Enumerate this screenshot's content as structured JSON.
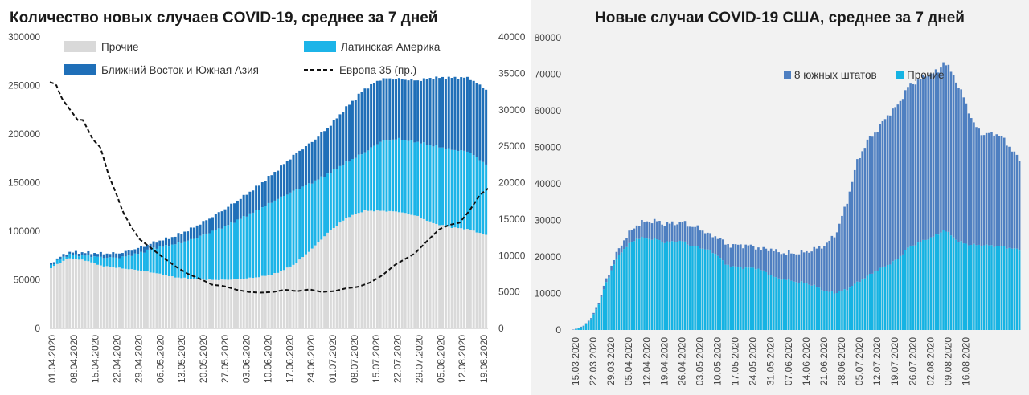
{
  "chart_data": [
    {
      "type": "bar",
      "stacked": true,
      "title": "Количество новых случаев COVID-19, среднее за 7 дней",
      "x_tick_labels": [
        "01.04.2020",
        "08.04.2020",
        "15.04.2020",
        "22.04.2020",
        "29.04.2020",
        "06.05.2020",
        "13.05.2020",
        "20.05.2020",
        "27.05.2020",
        "03.06.2020",
        "10.06.2020",
        "17.06.2020",
        "24.06.2020",
        "01.07.2020",
        "08.07.2020",
        "15.07.2020",
        "22.07.2020",
        "29.07.2020",
        "05.08.2020",
        "12.08.2020",
        "19.08.2020"
      ],
      "y_left_ticks": [
        "0",
        "50000",
        "100000",
        "150000",
        "200000",
        "250000",
        "300000"
      ],
      "y_left_range": [
        0,
        300000
      ],
      "y_right_ticks": [
        "0",
        "5000",
        "10000",
        "15000",
        "20000",
        "25000",
        "30000",
        "35000",
        "40000"
      ],
      "y_right_range": [
        0,
        40000
      ],
      "legend": [
        {
          "label": "Прочие",
          "color": "#d9d9d9",
          "kind": "bar"
        },
        {
          "label": "Латинская Америка",
          "color": "#1cb4e8",
          "kind": "bar"
        },
        {
          "label": "Ближний Восток и Южная Азия",
          "color": "#1f6fb8",
          "kind": "bar"
        },
        {
          "label": "Европа 35 (пр.)",
          "color": "#111111",
          "kind": "dashed-line"
        }
      ],
      "series": [
        {
          "name": "Прочие",
          "axis": "left",
          "anchors": [
            [
              0,
              62000
            ],
            [
              3,
              67000
            ],
            [
              7,
              72000
            ],
            [
              14,
              70000
            ],
            [
              21,
              64000
            ],
            [
              28,
              62000
            ],
            [
              35,
              60000
            ],
            [
              42,
              57000
            ],
            [
              49,
              53000
            ],
            [
              56,
              51000
            ],
            [
              63,
              50000
            ],
            [
              70,
              50000
            ],
            [
              77,
              51000
            ],
            [
              84,
              53000
            ],
            [
              91,
              57000
            ],
            [
              98,
              66000
            ],
            [
              105,
              82000
            ],
            [
              112,
              100000
            ],
            [
              119,
              114000
            ],
            [
              126,
              121000
            ],
            [
              133,
              121000
            ],
            [
              140,
              120000
            ],
            [
              147,
              116000
            ],
            [
              154,
              108000
            ],
            [
              161,
              104000
            ],
            [
              168,
              102000
            ],
            [
              175,
              96000
            ]
          ]
        },
        {
          "name": "Латинская Америка",
          "axis": "left",
          "anchors": [
            [
              0,
              3000
            ],
            [
              7,
              4000
            ],
            [
              14,
              5000
            ],
            [
              21,
              9000
            ],
            [
              28,
              11000
            ],
            [
              35,
              17000
            ],
            [
              42,
              26000
            ],
            [
              49,
              33000
            ],
            [
              56,
              40000
            ],
            [
              63,
              48000
            ],
            [
              70,
              55000
            ],
            [
              77,
              63000
            ],
            [
              84,
              70000
            ],
            [
              91,
              76000
            ],
            [
              98,
              76000
            ],
            [
              105,
              68000
            ],
            [
              112,
              60000
            ],
            [
              119,
              57000
            ],
            [
              126,
              60000
            ],
            [
              133,
              72000
            ],
            [
              140,
              75000
            ],
            [
              147,
              76000
            ],
            [
              154,
              80000
            ],
            [
              161,
              80000
            ],
            [
              168,
              80000
            ],
            [
              175,
              73000
            ]
          ]
        },
        {
          "name": "Ближний Восток и Южная Азия",
          "axis": "left",
          "anchors": [
            [
              0,
              2000
            ],
            [
              7,
              2500
            ],
            [
              14,
              3000
            ],
            [
              21,
              4000
            ],
            [
              28,
              4500
            ],
            [
              35,
              5500
            ],
            [
              42,
              6000
            ],
            [
              49,
              8000
            ],
            [
              56,
              11000
            ],
            [
              63,
              14000
            ],
            [
              70,
              18000
            ],
            [
              77,
              21000
            ],
            [
              84,
              25000
            ],
            [
              91,
              30000
            ],
            [
              98,
              37000
            ],
            [
              105,
              42000
            ],
            [
              112,
              48000
            ],
            [
              119,
              57000
            ],
            [
              126,
              65000
            ],
            [
              133,
              64000
            ],
            [
              140,
              62000
            ],
            [
              147,
              63000
            ],
            [
              154,
              70000
            ],
            [
              161,
              74000
            ],
            [
              168,
              76000
            ],
            [
              175,
              77000
            ]
          ]
        },
        {
          "name": "Европа 35 (пр.)",
          "axis": "right",
          "anchors": [
            [
              0,
              33800
            ],
            [
              3,
              33500
            ],
            [
              6,
              31500
            ],
            [
              10,
              30000
            ],
            [
              14,
              28500
            ],
            [
              16,
              28700
            ],
            [
              18,
              27700
            ],
            [
              21,
              26000
            ],
            [
              25,
              24800
            ],
            [
              29,
              21000
            ],
            [
              33,
              18300
            ],
            [
              36,
              16000
            ],
            [
              40,
              14000
            ],
            [
              44,
              12300
            ],
            [
              50,
              11000
            ],
            [
              56,
              9700
            ],
            [
              62,
              8500
            ],
            [
              68,
              7500
            ],
            [
              74,
              6800
            ],
            [
              80,
              6000
            ],
            [
              86,
              5800
            ],
            [
              92,
              5300
            ],
            [
              98,
              5000
            ],
            [
              104,
              4900
            ],
            [
              110,
              5000
            ],
            [
              116,
              5300
            ],
            [
              122,
              5100
            ],
            [
              128,
              5350
            ],
            [
              134,
              5000
            ],
            [
              140,
              5100
            ],
            [
              146,
              5500
            ],
            [
              152,
              5700
            ],
            [
              158,
              6300
            ],
            [
              164,
              7300
            ],
            [
              170,
              8700
            ],
            [
              175,
              9500
            ],
            [
              180,
              10300
            ],
            [
              186,
              12000
            ],
            [
              192,
              13600
            ],
            [
              197,
              14200
            ],
            [
              202,
              14500
            ],
            [
              207,
              16200
            ],
            [
              212,
              18300
            ],
            [
              216,
              19200
            ]
          ]
        }
      ]
    },
    {
      "type": "bar",
      "stacked": true,
      "title": "Новые случаи COVID-19  США, среднее за 7 дней",
      "x_tick_labels": [
        "15.03.2020",
        "22.03.2020",
        "29.03.2020",
        "05.04.2020",
        "12.04.2020",
        "19.04.2020",
        "26.04.2020",
        "03.05.2020",
        "10.05.2020",
        "17.05.2020",
        "24.05.2020",
        "31.05.2020",
        "07.06.2020",
        "14.06.2020",
        "21.06.2020",
        "28.06.2020",
        "05.07.2020",
        "12.07.2020",
        "19.07.2020",
        "26.07.2020",
        "02.08.2020",
        "09.08.2020",
        "16.08.2020"
      ],
      "y_ticks": [
        "0",
        "10000",
        "20000",
        "30000",
        "40000",
        "50000",
        "60000",
        "70000",
        "80000"
      ],
      "y_range": [
        0,
        80000
      ],
      "legend": [
        {
          "label": "8 южных штатов",
          "color": "#4e7fc1",
          "kind": "bar"
        },
        {
          "label": "Прочие",
          "color": "#15b3e3",
          "kind": "bar"
        }
      ],
      "series": [
        {
          "name": "Прочие",
          "anchors": [
            [
              0,
              0
            ],
            [
              4,
              1000
            ],
            [
              7,
              3000
            ],
            [
              10,
              7000
            ],
            [
              13,
              13000
            ],
            [
              16,
              18000
            ],
            [
              19,
              21500
            ],
            [
              22,
              23500
            ],
            [
              25,
              25000
            ],
            [
              27,
              25200
            ],
            [
              30,
              25000
            ],
            [
              33,
              24800
            ],
            [
              36,
              24000
            ],
            [
              40,
              24200
            ],
            [
              43,
              24300
            ],
            [
              46,
              23200
            ],
            [
              50,
              22500
            ],
            [
              53,
              22000
            ],
            [
              57,
              20500
            ],
            [
              60,
              18000
            ],
            [
              64,
              17200
            ],
            [
              68,
              17000
            ],
            [
              72,
              17000
            ],
            [
              76,
              15800
            ],
            [
              80,
              14200
            ],
            [
              84,
              13800
            ],
            [
              88,
              13200
            ],
            [
              92,
              12800
            ],
            [
              96,
              11800
            ],
            [
              100,
              10500
            ],
            [
              104,
              10200
            ],
            [
              108,
              11200
            ],
            [
              112,
              13000
            ],
            [
              116,
              14700
            ],
            [
              120,
              16500
            ],
            [
              124,
              17800
            ],
            [
              128,
              19500
            ],
            [
              132,
              22500
            ],
            [
              136,
              23800
            ],
            [
              140,
              25000
            ],
            [
              144,
              26200
            ],
            [
              146,
              27500
            ],
            [
              149,
              26000
            ],
            [
              152,
              24200
            ],
            [
              156,
              23400
            ],
            [
              160,
              23200
            ],
            [
              163,
              23200
            ],
            [
              166,
              23000
            ],
            [
              170,
              22700
            ],
            [
              173,
              22300
            ],
            [
              176,
              22000
            ]
          ]
        },
        {
          "name": "8 южных штатов",
          "anchors": [
            [
              0,
              100
            ],
            [
              6,
              200
            ],
            [
              11,
              500
            ],
            [
              14,
              1000
            ],
            [
              18,
              1800
            ],
            [
              22,
              3000
            ],
            [
              26,
              4000
            ],
            [
              30,
              4800
            ],
            [
              34,
              5000
            ],
            [
              40,
              5000
            ],
            [
              46,
              5300
            ],
            [
              50,
              5200
            ],
            [
              54,
              4200
            ],
            [
              58,
              5300
            ],
            [
              62,
              5700
            ],
            [
              66,
              6200
            ],
            [
              70,
              6000
            ],
            [
              74,
              5600
            ],
            [
              78,
              7200
            ],
            [
              84,
              7200
            ],
            [
              88,
              7800
            ],
            [
              92,
              8600
            ],
            [
              96,
              10500
            ],
            [
              100,
              13000
            ],
            [
              104,
              16700
            ],
            [
              108,
              24000
            ],
            [
              112,
              33200
            ],
            [
              116,
              37000
            ],
            [
              120,
              38300
            ],
            [
              124,
              41000
            ],
            [
              128,
              42000
            ],
            [
              132,
              44000
            ],
            [
              136,
              44500
            ],
            [
              140,
              45000
            ],
            [
              144,
              44500
            ],
            [
              146,
              46000
            ],
            [
              150,
              44500
            ],
            [
              154,
              40000
            ],
            [
              158,
              33000
            ],
            [
              162,
              30200
            ],
            [
              166,
              31000
            ],
            [
              170,
              29500
            ],
            [
              173,
              26800
            ],
            [
              176,
              24800
            ]
          ]
        }
      ]
    }
  ],
  "colors": {
    "left_other": "#d9d9d9",
    "left_latam": "#1cb4e8",
    "left_mesa": "#1f6fb8",
    "left_europe": "#111111",
    "right_south": "#4e7fc1",
    "right_other": "#15b3e3",
    "right_background": "#f2f2f2"
  }
}
